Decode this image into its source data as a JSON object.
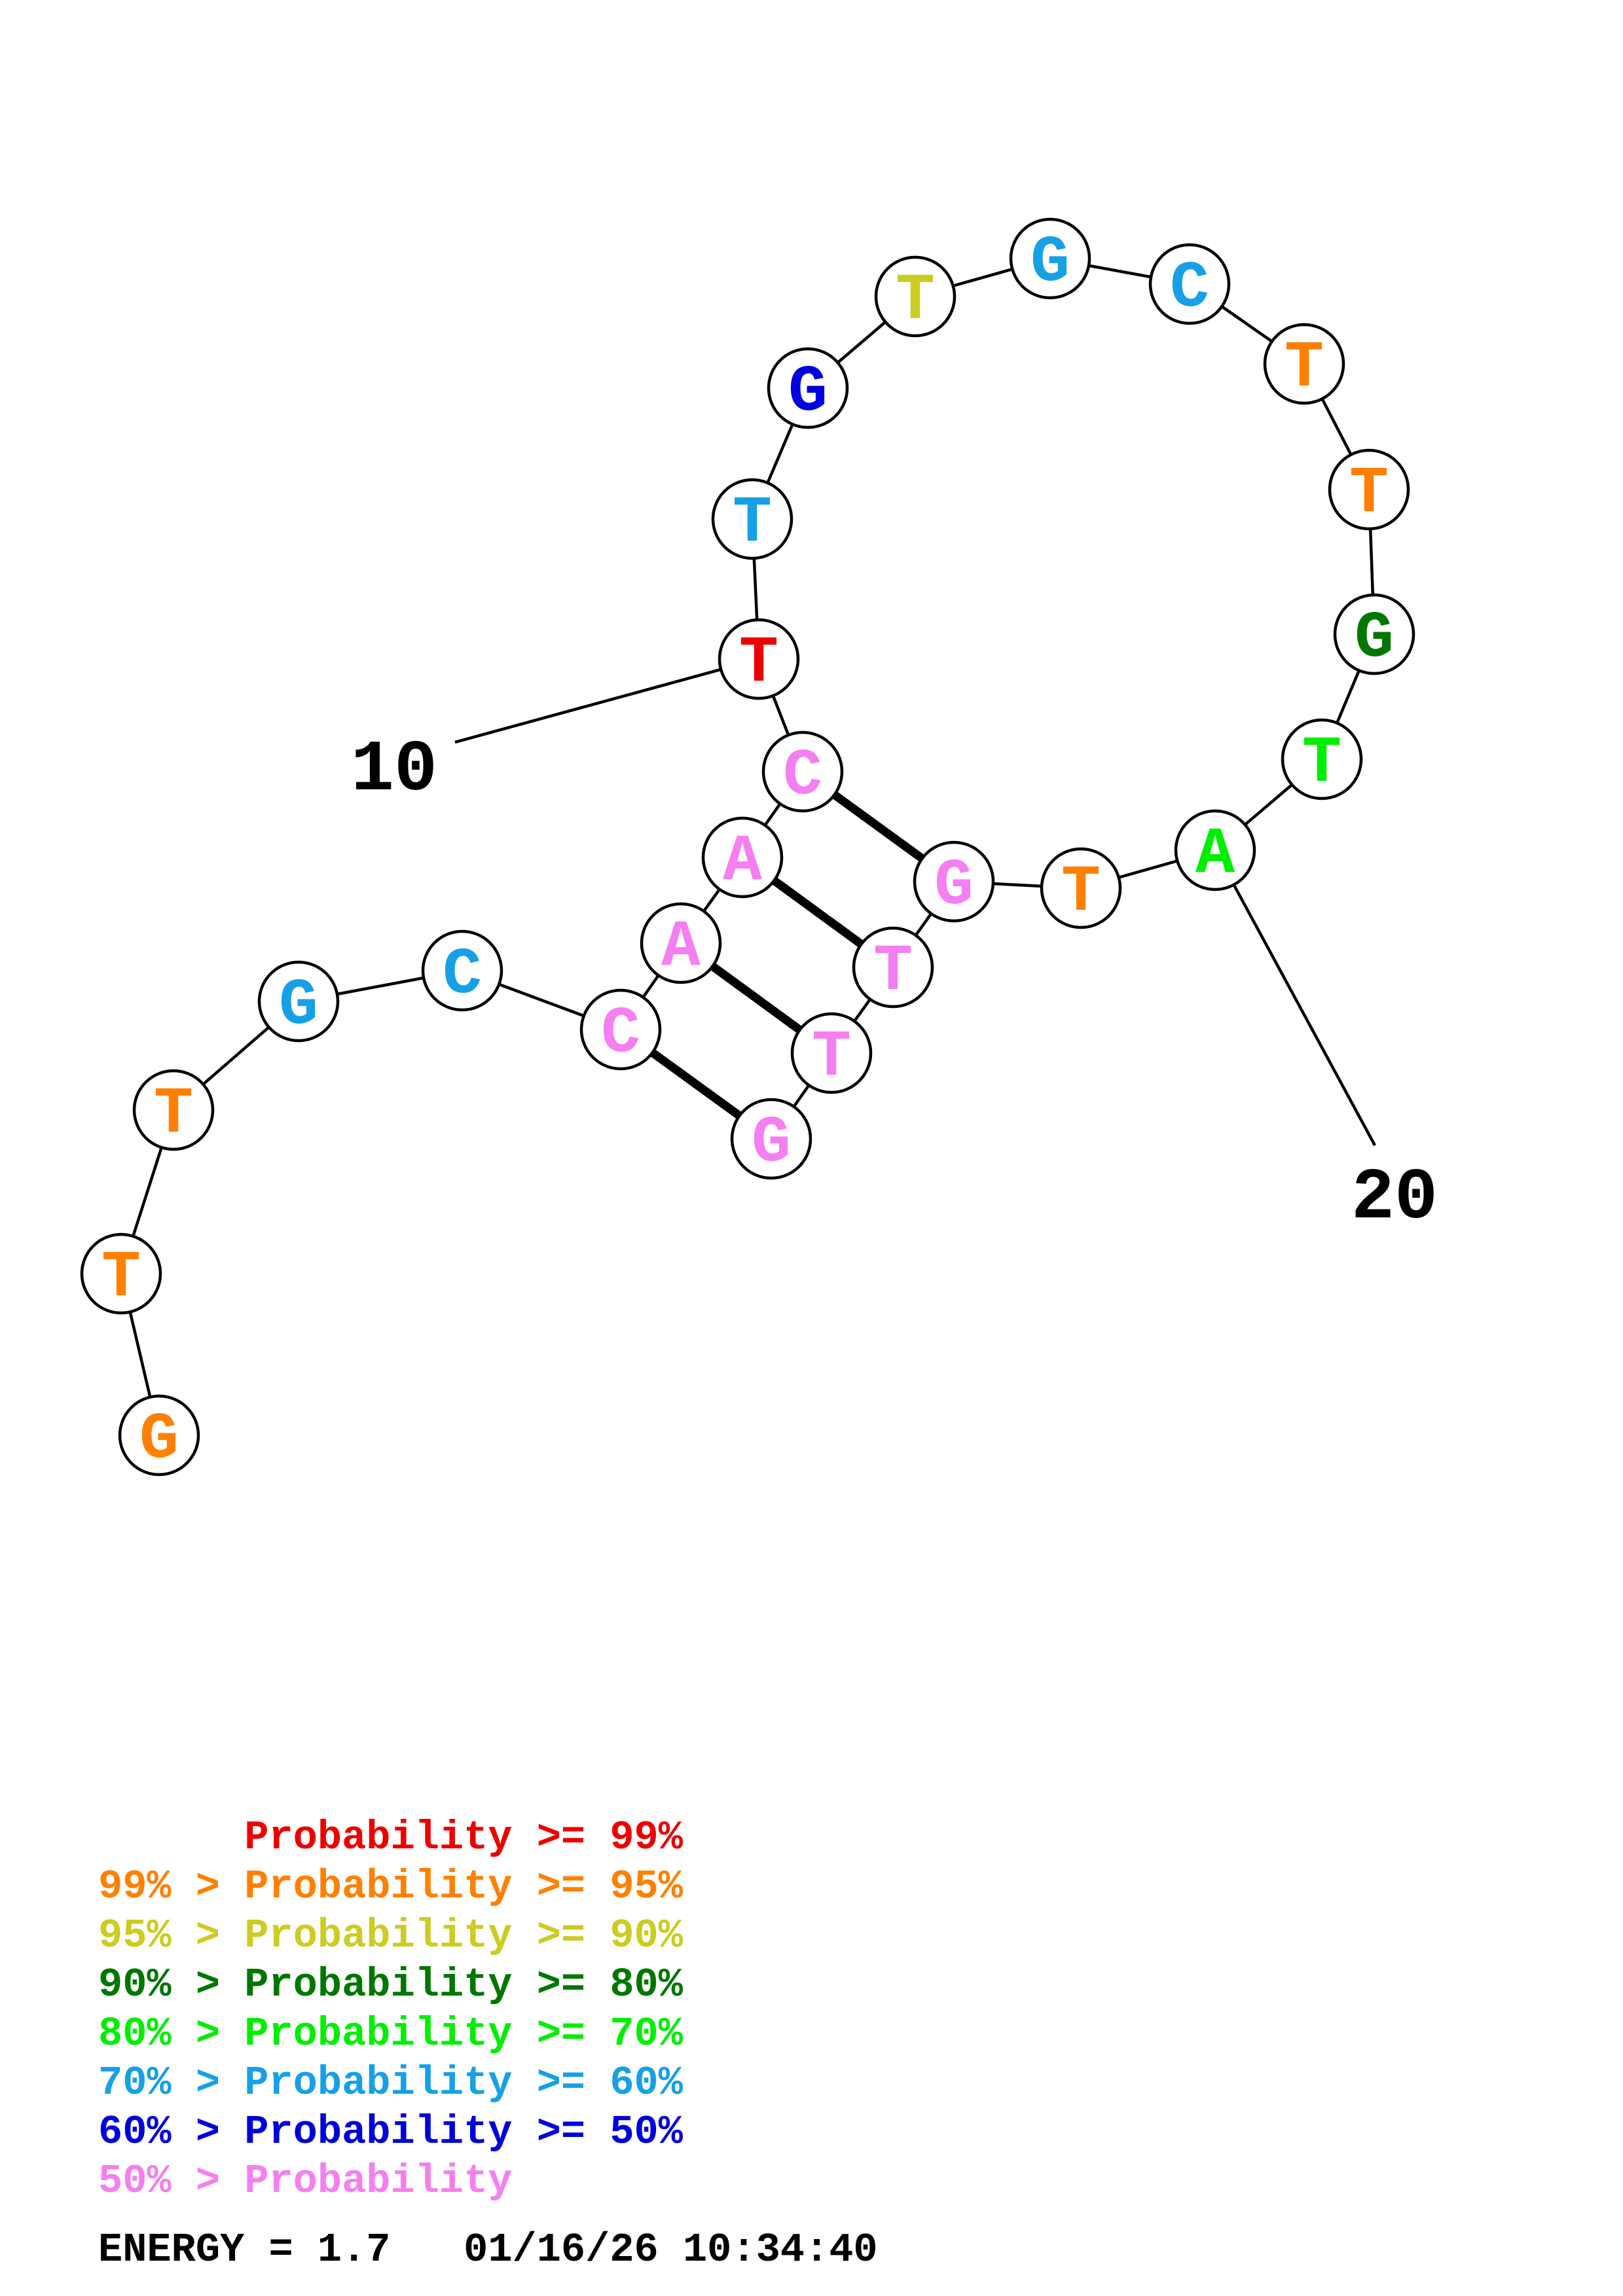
{
  "structure": {
    "nucleotides": [
      {
        "n": 1,
        "base": "G",
        "color": "#ff8000"
      },
      {
        "n": 2,
        "base": "T",
        "color": "#ff8000"
      },
      {
        "n": 3,
        "base": "T",
        "color": "#ff8000"
      },
      {
        "n": 4,
        "base": "G",
        "color": "#16a0e6"
      },
      {
        "n": 5,
        "base": "C",
        "color": "#16a0e6"
      },
      {
        "n": 6,
        "base": "C",
        "color": "#f57ff0"
      },
      {
        "n": 7,
        "base": "A",
        "color": "#f57ff0"
      },
      {
        "n": 8,
        "base": "A",
        "color": "#f57ff0"
      },
      {
        "n": 9,
        "base": "C",
        "color": "#f57ff0"
      },
      {
        "n": 10,
        "base": "T",
        "color": "#ee0000"
      },
      {
        "n": 11,
        "base": "T",
        "color": "#16a0e6"
      },
      {
        "n": 12,
        "base": "G",
        "color": "#0000dd"
      },
      {
        "n": 13,
        "base": "T",
        "color": "#cccc22"
      },
      {
        "n": 14,
        "base": "G",
        "color": "#16a0e6"
      },
      {
        "n": 15,
        "base": "C",
        "color": "#16a0e6"
      },
      {
        "n": 16,
        "base": "T",
        "color": "#ff8000"
      },
      {
        "n": 17,
        "base": "T",
        "color": "#ff8000"
      },
      {
        "n": 18,
        "base": "G",
        "color": "#007700"
      },
      {
        "n": 19,
        "base": "T",
        "color": "#00ee00"
      },
      {
        "n": 20,
        "base": "A",
        "color": "#00ee00"
      },
      {
        "n": 21,
        "base": "T",
        "color": "#ff8000"
      },
      {
        "n": 22,
        "base": "G",
        "color": "#f57ff0"
      },
      {
        "n": 23,
        "base": "T",
        "color": "#f57ff0"
      },
      {
        "n": 24,
        "base": "T",
        "color": "#f57ff0"
      },
      {
        "n": 25,
        "base": "G",
        "color": "#f57ff0"
      }
    ],
    "pairs": [
      [
        6,
        25
      ],
      [
        7,
        24
      ],
      [
        8,
        23
      ],
      [
        9,
        22
      ]
    ],
    "tick_labels": [
      {
        "n": 10,
        "label": "10"
      },
      {
        "n": 20,
        "label": "20"
      }
    ]
  },
  "legend": [
    {
      "prefix": "",
      "main": "Probability >= 99%",
      "color": "#ee0000"
    },
    {
      "prefix": "99% > ",
      "main": "Probability >= 95%",
      "color": "#ff8000"
    },
    {
      "prefix": "95% > ",
      "main": "Probability >= 90%",
      "color": "#cccc22"
    },
    {
      "prefix": "90% > ",
      "main": "Probability >= 80%",
      "color": "#007700"
    },
    {
      "prefix": "80% > ",
      "main": "Probability >= 70%",
      "color": "#00ee00"
    },
    {
      "prefix": "70% > ",
      "main": "Probability >= 60%",
      "color": "#16a0e6"
    },
    {
      "prefix": "60% > ",
      "main": "Probability >= 50%",
      "color": "#0000dd"
    },
    {
      "prefix": "50% > ",
      "main": "Probability",
      "color": "#f57ff0"
    }
  ],
  "energy": {
    "text": "ENERGY = 1.7",
    "timestamp": "01/16/26 10:34:40"
  }
}
